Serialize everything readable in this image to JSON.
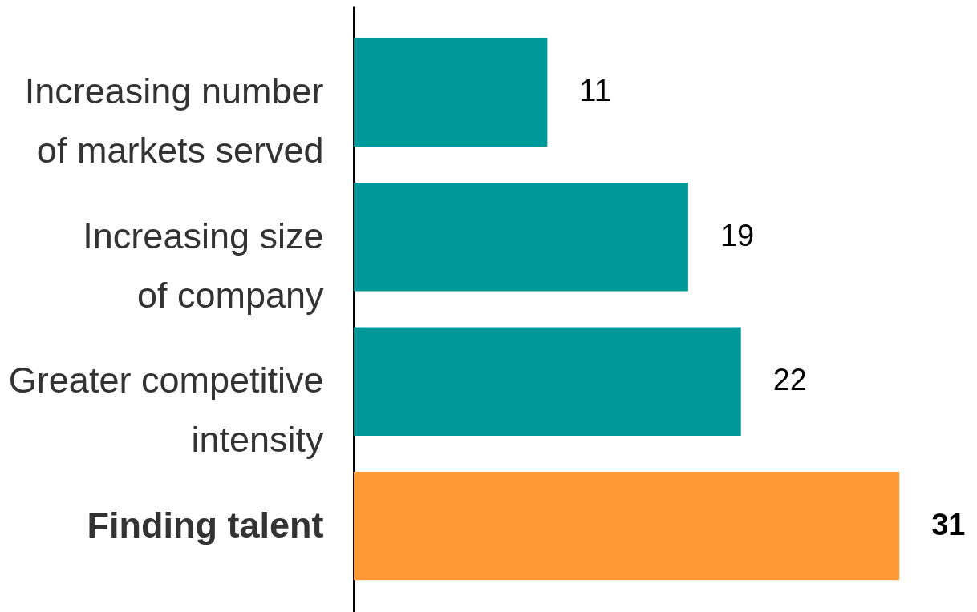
{
  "chart_data": {
    "type": "bar",
    "orientation": "horizontal",
    "categories": [
      "Increasing number\nof markets served",
      "Increasing size \nof company",
      "Greater competitive\nintensity",
      "Finding talent"
    ],
    "values": [
      11,
      19,
      22,
      31
    ],
    "colors": [
      "#009999",
      "#009999",
      "#009999",
      "#ff9933"
    ],
    "data_labels": true
  }
}
